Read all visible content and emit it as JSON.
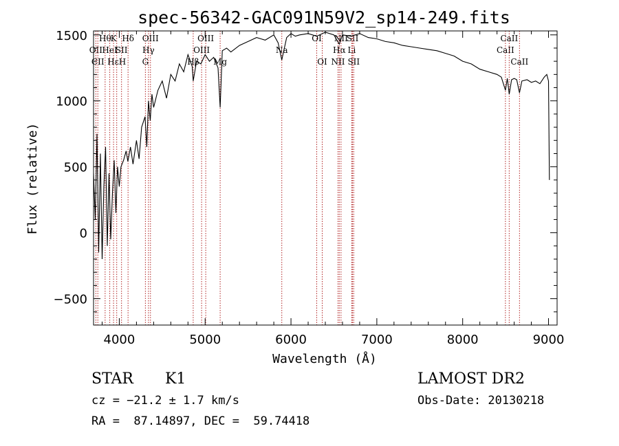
{
  "chart_data": {
    "type": "line",
    "title": "spec-56342-GAC091N59V2_sp14-249.fits",
    "xlabel": "Wavelength (Å)",
    "ylabel": "Flux (relative)",
    "xlim": [
      3700,
      9100
    ],
    "ylim": [
      -700,
      1530
    ],
    "xticks": [
      4000,
      5000,
      6000,
      7000,
      8000,
      9000
    ],
    "yticks": [
      -500,
      0,
      500,
      1000,
      1500
    ],
    "grid": false,
    "colors": {
      "spectrum": "#000000",
      "line_markers": "#b02020"
    },
    "series": [
      {
        "x": [
          3700,
          3720,
          3740,
          3760,
          3780,
          3800,
          3820,
          3840,
          3860,
          3880,
          3900,
          3920,
          3940,
          3960,
          3980,
          4000,
          4020,
          4050,
          4080,
          4100,
          4130,
          4160,
          4200,
          4230,
          4260,
          4300,
          4320,
          4340,
          4360,
          4380,
          4400,
          4450,
          4500,
          4550,
          4600,
          4650,
          4700,
          4750,
          4800,
          4850,
          4861,
          4900,
          4950,
          5000,
          5050,
          5100,
          5150,
          5175,
          5200,
          5250,
          5300,
          5400,
          5500,
          5600,
          5700,
          5800,
          5850,
          5893,
          5950,
          6000,
          6050,
          6100,
          6200,
          6300,
          6400,
          6500,
          6563,
          6600,
          6700,
          6800,
          6900,
          7000,
          7100,
          7200,
          7300,
          7400,
          7500,
          7600,
          7700,
          7800,
          7900,
          8000,
          8100,
          8200,
          8300,
          8400,
          8450,
          8498,
          8520,
          8542,
          8570,
          8600,
          8630,
          8662,
          8690,
          8750,
          8800,
          8850,
          8900,
          8950,
          8980,
          9000,
          9010
        ],
        "y": [
          450,
          100,
          750,
          -150,
          600,
          -200,
          350,
          650,
          -100,
          450,
          -50,
          300,
          550,
          150,
          500,
          350,
          500,
          550,
          620,
          540,
          650,
          520,
          700,
          560,
          800,
          880,
          650,
          1000,
          850,
          1050,
          950,
          1080,
          1150,
          1020,
          1200,
          1150,
          1280,
          1220,
          1350,
          1260,
          1150,
          1300,
          1280,
          1350,
          1300,
          1330,
          1250,
          950,
          1380,
          1400,
          1370,
          1420,
          1450,
          1480,
          1460,
          1500,
          1440,
          1310,
          1480,
          1510,
          1490,
          1500,
          1510,
          1490,
          1520,
          1500,
          1430,
          1500,
          1490,
          1510,
          1480,
          1470,
          1450,
          1440,
          1420,
          1410,
          1400,
          1390,
          1380,
          1360,
          1340,
          1300,
          1280,
          1240,
          1220,
          1200,
          1180,
          1080,
          1170,
          1050,
          1160,
          1170,
          1160,
          1060,
          1150,
          1160,
          1140,
          1150,
          1130,
          1180,
          1200,
          1150,
          400
        ]
      }
    ],
    "spectral_lines": [
      {
        "wavelength": 3727,
        "labels": [
          "OII"
        ],
        "row": 1
      },
      {
        "wavelength": 3750,
        "labels": [
          "CII"
        ],
        "row": 2
      },
      {
        "wavelength": 3835,
        "labels": [
          "Hθ"
        ],
        "row": 0
      },
      {
        "wavelength": 3889,
        "labels": [
          "HeI"
        ],
        "row": 1
      },
      {
        "wavelength": 3933,
        "labels": [
          "K"
        ],
        "row": 0
      },
      {
        "wavelength": 3970,
        "labels": [
          "Hε",
          "H"
        ],
        "row": 2
      },
      {
        "wavelength": 4026,
        "labels": [
          "SII"
        ],
        "row": 1
      },
      {
        "wavelength": 4102,
        "labels": [
          "Hδ"
        ],
        "row": 0
      },
      {
        "wavelength": 4304,
        "labels": [
          "G"
        ],
        "row": 2
      },
      {
        "wavelength": 4340,
        "labels": [
          "Hγ"
        ],
        "row": 1
      },
      {
        "wavelength": 4363,
        "labels": [
          "OIII"
        ],
        "row": 0
      },
      {
        "wavelength": 4861,
        "labels": [
          "Hβ"
        ],
        "row": 2
      },
      {
        "wavelength": 4959,
        "labels": [
          "OIII"
        ],
        "row": 1
      },
      {
        "wavelength": 5007,
        "labels": [
          "OIII"
        ],
        "row": 0
      },
      {
        "wavelength": 5175,
        "labels": [
          "Mg"
        ],
        "row": 2
      },
      {
        "wavelength": 5893,
        "labels": [
          "Na"
        ],
        "row": 1
      },
      {
        "wavelength": 6300,
        "labels": [
          "OI"
        ],
        "row": 0
      },
      {
        "wavelength": 6364,
        "labels": [
          "OI"
        ],
        "row": 2
      },
      {
        "wavelength": 6548,
        "labels": [
          "NII"
        ],
        "row": 2
      },
      {
        "wavelength": 6563,
        "labels": [
          "Hα"
        ],
        "row": 1
      },
      {
        "wavelength": 6583,
        "labels": [
          "NII"
        ],
        "row": 0
      },
      {
        "wavelength": 6708,
        "labels": [
          "Li"
        ],
        "row": 1
      },
      {
        "wavelength": 6717,
        "labels": [
          "SII"
        ],
        "row": 0
      },
      {
        "wavelength": 6731,
        "labels": [
          "SII"
        ],
        "row": 2
      },
      {
        "wavelength": 8498,
        "labels": [
          "CaII"
        ],
        "row": 1
      },
      {
        "wavelength": 8542,
        "labels": [
          "CaII"
        ],
        "row": 0
      },
      {
        "wavelength": 8662,
        "labels": [
          "CaII"
        ],
        "row": 2
      }
    ]
  },
  "info": {
    "class": "STAR",
    "subclass": "K1",
    "survey": "LAMOST DR2",
    "cz": "cz = −21.2 ± 1.7 km/s",
    "obs_date": "Obs-Date: 20130218",
    "radec": "RA =  87.14897, DEC =  59.74418"
  }
}
